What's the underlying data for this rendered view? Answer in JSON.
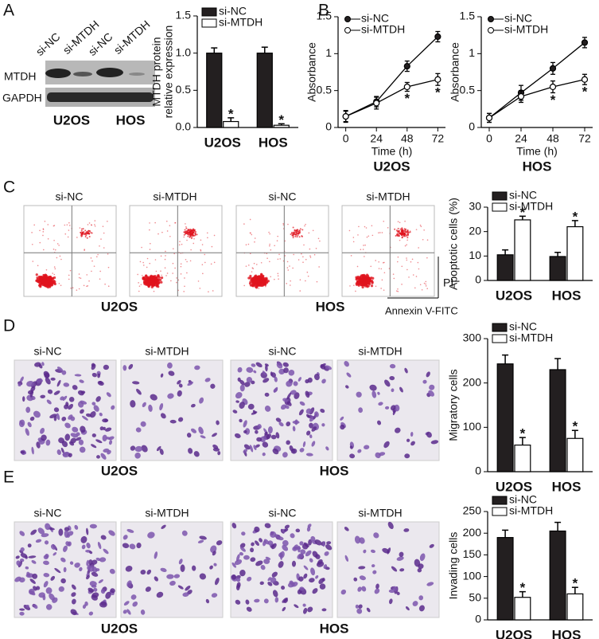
{
  "panels": {
    "A": {
      "letter": "A",
      "lanes": [
        "si-NC",
        "si-MTDH",
        "si-NC",
        "si-MTDH"
      ],
      "rows": [
        "MTDH",
        "GAPDH"
      ],
      "cells": [
        "U2OS",
        "HOS"
      ]
    },
    "B": {
      "letter": "B"
    },
    "C": {
      "letter": "C",
      "plots": [
        "si-NC",
        "si-MTDH",
        "si-NC",
        "si-MTDH"
      ],
      "cells": [
        "U2OS",
        "HOS"
      ],
      "y_axis": "PI",
      "x_axis": "Annexin V-FITC"
    },
    "D": {
      "letter": "D",
      "images": [
        "si-NC",
        "si-MTDH",
        "si-NC",
        "si-MTDH"
      ],
      "cells": [
        "U2OS",
        "HOS"
      ]
    },
    "E": {
      "letter": "E",
      "images": [
        "si-NC",
        "si-MTDH",
        "si-NC",
        "si-MTDH"
      ],
      "cells": [
        "U2OS",
        "HOS"
      ]
    }
  },
  "chart_data": [
    {
      "type": "bar",
      "ylabel": [
        "MTDH protein",
        "relative expression"
      ],
      "categories": [
        "U2OS",
        "HOS"
      ],
      "series": [
        {
          "name": "si-NC",
          "color": "#231f20",
          "values": [
            1.0,
            1.0
          ],
          "errors": [
            0.07,
            0.08
          ]
        },
        {
          "name": "si-MTDH",
          "color": "#ffffff",
          "values": [
            0.08,
            0.03
          ],
          "errors": [
            0.05,
            0.02
          ],
          "annotations": [
            "*",
            "*"
          ]
        }
      ],
      "ylim": [
        0,
        1.5
      ],
      "yticks": [
        {
          "value": 0,
          "label": "0.0"
        },
        0.5,
        {
          "value": 1,
          "label": "1.0"
        },
        1.5
      ],
      "legend": "upper left"
    },
    {
      "type": "line",
      "ylabel": "Absorbance",
      "xlabel": "Time (h)",
      "subtitle": "U2OS",
      "x": [
        0,
        24,
        48,
        72
      ],
      "series": [
        {
          "name": "si-NC",
          "color": "#231f20",
          "values": [
            0.15,
            0.35,
            0.83,
            1.23
          ],
          "errors": [
            0.07,
            0.07,
            0.07,
            0.07
          ]
        },
        {
          "name": "si-MTDH",
          "color": "#ffffff",
          "values": [
            0.15,
            0.33,
            0.55,
            0.65
          ],
          "errors": [
            0.08,
            0.08,
            0.06,
            0.08
          ],
          "annotations": [
            null,
            null,
            "*",
            "*"
          ]
        }
      ],
      "xlim": [
        -6,
        78
      ],
      "xticks": [
        0,
        24,
        48,
        72
      ],
      "ylim": [
        0,
        1.5
      ],
      "yticks": [
        0,
        0.5,
        1,
        1.5
      ],
      "legend": "upper left"
    },
    {
      "type": "line",
      "ylabel": "Absorbance",
      "xlabel": "Time (h)",
      "subtitle": "HOS",
      "x": [
        0,
        24,
        48,
        72
      ],
      "series": [
        {
          "name": "si-NC",
          "color": "#231f20",
          "values": [
            0.13,
            0.47,
            0.8,
            1.15
          ],
          "errors": [
            0.06,
            0.1,
            0.08,
            0.07
          ]
        },
        {
          "name": "si-MTDH",
          "color": "#ffffff",
          "values": [
            0.13,
            0.42,
            0.55,
            0.65
          ],
          "errors": [
            0.06,
            0.08,
            0.08,
            0.07
          ],
          "annotations": [
            null,
            null,
            "*",
            "*"
          ]
        }
      ],
      "xlim": [
        -6,
        78
      ],
      "xticks": [
        0,
        24,
        48,
        72
      ],
      "ylim": [
        0,
        1.5
      ],
      "yticks": [
        0,
        0.5,
        1,
        1.5
      ],
      "legend": "upper left"
    },
    {
      "type": "bar",
      "ylabel": "Apoptotic cells (%)",
      "categories": [
        "U2OS",
        "HOS"
      ],
      "series": [
        {
          "name": "si-NC",
          "color": "#231f20",
          "values": [
            10.5,
            9.8
          ],
          "errors": [
            2,
            1.7
          ]
        },
        {
          "name": "si-MTDH",
          "color": "#ffffff",
          "values": [
            24.8,
            22
          ],
          "errors": [
            1.5,
            2.5
          ],
          "annotations": [
            "*",
            "*"
          ]
        }
      ],
      "ylim": [
        0,
        30
      ],
      "yticks": [
        0,
        10,
        20,
        30
      ],
      "legend": "upper left"
    },
    {
      "type": "bar",
      "ylabel": "Migratory cells",
      "categories": [
        "U2OS",
        "HOS"
      ],
      "series": [
        {
          "name": "si-NC",
          "color": "#231f20",
          "values": [
            243,
            230
          ],
          "errors": [
            20,
            25
          ]
        },
        {
          "name": "si-MTDH",
          "color": "#ffffff",
          "values": [
            60,
            75
          ],
          "errors": [
            17,
            18
          ],
          "annotations": [
            "*",
            "*"
          ]
        }
      ],
      "ylim": [
        0,
        300
      ],
      "yticks": [
        0,
        100,
        200,
        300
      ],
      "legend": "upper left"
    },
    {
      "type": "bar",
      "ylabel": "Invading cells",
      "categories": [
        "U2OS",
        "HOS"
      ],
      "series": [
        {
          "name": "si-NC",
          "color": "#231f20",
          "values": [
            190,
            205
          ],
          "errors": [
            17,
            20
          ]
        },
        {
          "name": "si-MTDH",
          "color": "#ffffff",
          "values": [
            52,
            60
          ],
          "errors": [
            13,
            15
          ],
          "annotations": [
            "*",
            "*"
          ]
        }
      ],
      "ylim": [
        0,
        250
      ],
      "yticks": [
        0,
        50,
        100,
        150,
        200,
        250
      ],
      "legend": "upper left"
    }
  ]
}
